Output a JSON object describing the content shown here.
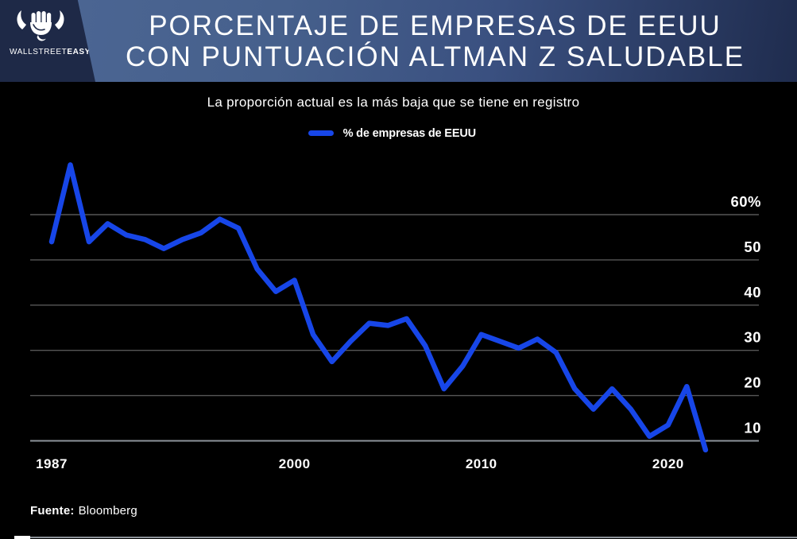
{
  "header": {
    "brand": {
      "wordmark_regular": "WALLSTREET",
      "wordmark_bold": "EASY"
    },
    "title_line1": "PORCENTAJE DE EMPRESAS DE EEUU",
    "title_line2": "CON PUNTUACIÓN ALTMAN Z SALUDABLE"
  },
  "subtitle": "La proporción actual es la más baja que se tiene en registro",
  "legend": {
    "label": "% de empresas de EEUU"
  },
  "footer": {
    "source_label": "Fuente:",
    "source_value": "Bloomberg"
  },
  "colors": {
    "line": "#1746e8",
    "grid": "#575757",
    "axis": "#8d939a",
    "text": "#ffffff",
    "header_dark": "#1e2947",
    "header_blue": "#46608c",
    "background": "#000000"
  },
  "chart_data": {
    "type": "line",
    "title": "PORCENTAJE DE EMPRESAS DE EEUU CON PUNTUACIÓN ALTMAN Z SALUDABLE",
    "subtitle": "La proporción actual es la más baja que se tiene en registro",
    "xlabel": "",
    "ylabel": "% de empresas de EEUU",
    "legend_position": "top-center",
    "grid": "horizontal",
    "x": [
      1987,
      1988,
      1989,
      1990,
      1991,
      1992,
      1993,
      1994,
      1995,
      1996,
      1997,
      1998,
      1999,
      2000,
      2001,
      2002,
      2003,
      2004,
      2005,
      2006,
      2007,
      2008,
      2009,
      2010,
      2011,
      2012,
      2013,
      2014,
      2015,
      2016,
      2017,
      2018,
      2019,
      2020,
      2021,
      2022
    ],
    "series": [
      {
        "name": "% de empresas de EEUU",
        "values": [
          54,
          71,
          54,
          58,
          55.5,
          54.5,
          52.5,
          54.5,
          56,
          59,
          57,
          48,
          43,
          45.5,
          33.5,
          27.5,
          32,
          36,
          35.5,
          37,
          31,
          21.5,
          26.5,
          33.5,
          32,
          30.5,
          32.5,
          29.5,
          21.5,
          17,
          21.5,
          17,
          11,
          13.5,
          22,
          8
        ]
      }
    ],
    "yticks": [
      60,
      50,
      40,
      30,
      20,
      10
    ],
    "ytick_labels": [
      "60%",
      "50",
      "40",
      "30",
      "20",
      "10"
    ],
    "xtick_years": [
      1987,
      2000,
      2010,
      2020
    ],
    "xtick_labels": [
      "1987",
      "2000",
      "2010",
      "2020"
    ],
    "xlim": [
      1986.8,
      2022.5
    ],
    "ylim": [
      7,
      73
    ]
  }
}
